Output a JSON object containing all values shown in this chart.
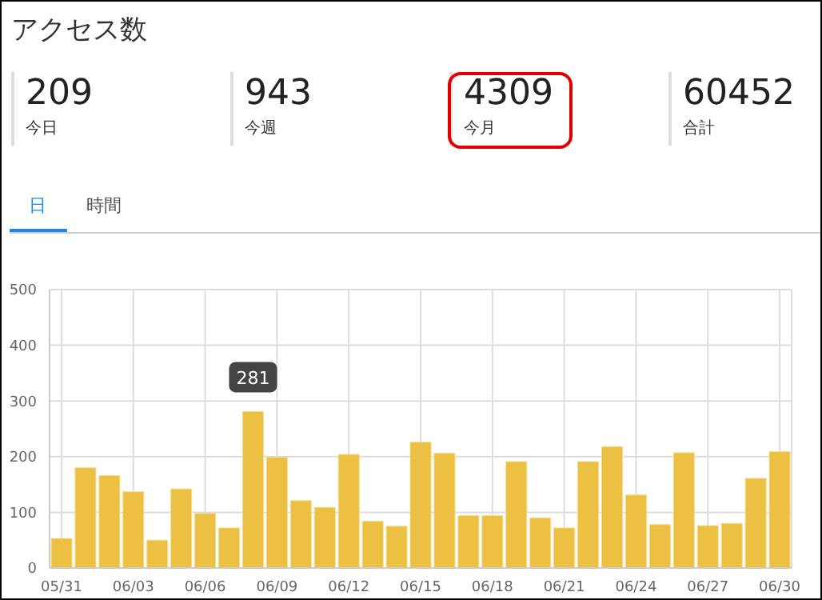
{
  "chart_data": [
    {
      "type": "other",
      "title": "アクセス数",
      "annotations": [
        "209",
        "今日",
        "943",
        "今週",
        "4309",
        "今月",
        "60452",
        "合計",
        "日",
        "時間"
      ]
    },
    {
      "type": "bar",
      "categories": [
        "05/31",
        null,
        null,
        "06/03",
        null,
        null,
        "06/06",
        null,
        null,
        "06/09",
        null,
        null,
        "06/12",
        null,
        null,
        "06/15",
        null,
        null,
        "06/18",
        null,
        null,
        "06/21",
        null,
        null,
        "06/24",
        null,
        null,
        "06/27",
        null,
        null,
        "06/30"
      ],
      "values": [
        53,
        180,
        166,
        137,
        50,
        142,
        98,
        72,
        281,
        199,
        121,
        109,
        204,
        84,
        75,
        226,
        206,
        94,
        94,
        191,
        90,
        72,
        191,
        218,
        131,
        78,
        207,
        76,
        80,
        161,
        209
      ],
      "value_labels": [
        null,
        null,
        null,
        null,
        null,
        null,
        null,
        null,
        "281",
        null,
        null,
        null,
        null,
        null,
        null,
        null,
        null,
        null,
        null,
        null,
        null,
        null,
        null,
        null,
        null,
        null,
        null,
        null,
        null,
        null,
        null
      ],
      "color": "#ecc143",
      "ylim": [
        0,
        500
      ],
      "yticks": [
        0,
        100,
        200,
        300,
        400,
        500
      ],
      "grid": true
    }
  ]
}
